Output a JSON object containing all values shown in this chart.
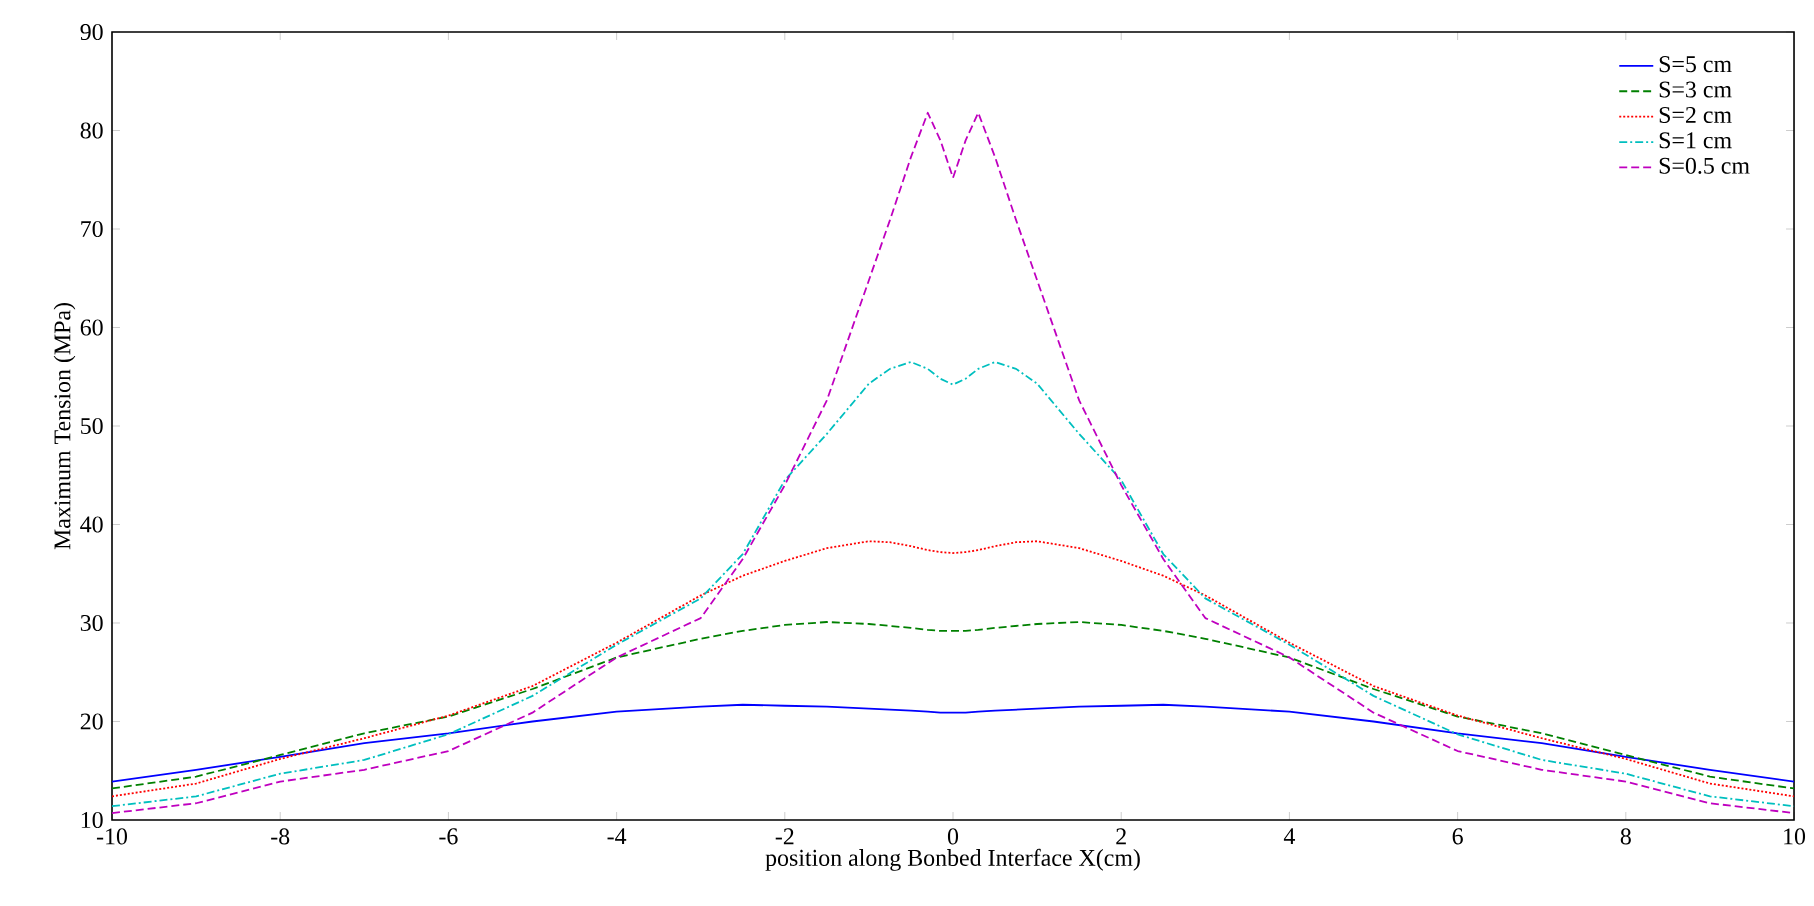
{
  "chart_data": {
    "type": "line",
    "xlabel": "position along Bonbed Interface X(cm)",
    "ylabel": "Maximum Tension (MPa)",
    "x": [
      -10,
      -9,
      -8,
      -7,
      -6,
      -5,
      -4,
      -3,
      -2.5,
      -2,
      -1.5,
      -1,
      -0.75,
      -0.5,
      -0.3,
      -0.15,
      0,
      0.15,
      0.3,
      0.5,
      0.75,
      1,
      1.5,
      2,
      2.5,
      3,
      4,
      5,
      6,
      7,
      8,
      9,
      10
    ],
    "series": [
      {
        "name": "S=5 cm",
        "color": "#0000ff",
        "line_style": "solid",
        "values": [
          13.9,
          15.1,
          16.4,
          17.8,
          18.8,
          20.0,
          21.0,
          21.5,
          21.7,
          21.6,
          21.5,
          21.3,
          21.2,
          21.1,
          21.0,
          20.9,
          20.9,
          20.9,
          21.0,
          21.1,
          21.2,
          21.3,
          21.5,
          21.6,
          21.7,
          21.5,
          21.0,
          20.0,
          18.8,
          17.8,
          16.4,
          15.1,
          13.9
        ]
      },
      {
        "name": "S=3 cm",
        "color": "#008000",
        "line_style": "dashed",
        "values": [
          13.2,
          14.4,
          16.6,
          18.8,
          20.5,
          23.3,
          26.5,
          28.4,
          29.2,
          29.8,
          30.1,
          29.9,
          29.7,
          29.5,
          29.3,
          29.2,
          29.2,
          29.2,
          29.3,
          29.5,
          29.7,
          29.9,
          30.1,
          29.8,
          29.2,
          28.4,
          26.5,
          23.3,
          20.5,
          18.8,
          16.6,
          14.4,
          13.2
        ]
      },
      {
        "name": "S=2 cm",
        "color": "#ff0000",
        "line_style": "dotted",
        "values": [
          12.4,
          13.7,
          16.2,
          18.3,
          20.6,
          23.6,
          28.0,
          32.8,
          34.8,
          36.3,
          37.6,
          38.3,
          38.2,
          37.8,
          37.4,
          37.2,
          37.1,
          37.2,
          37.4,
          37.8,
          38.2,
          38.3,
          37.6,
          36.3,
          34.8,
          32.8,
          28.0,
          23.6,
          20.6,
          18.3,
          16.2,
          13.7,
          12.4
        ]
      },
      {
        "name": "S=1 cm",
        "color": "#00bfbf",
        "line_style": "dashdot",
        "values": [
          11.4,
          12.4,
          14.7,
          16.1,
          18.7,
          22.6,
          27.8,
          32.5,
          37.0,
          44.5,
          49.2,
          54.3,
          55.8,
          56.5,
          55.8,
          54.8,
          54.2,
          54.8,
          55.8,
          56.5,
          55.8,
          54.3,
          49.2,
          44.5,
          37.0,
          32.5,
          27.8,
          22.6,
          18.7,
          16.1,
          14.7,
          12.4,
          11.4
        ]
      },
      {
        "name": "S=0.5 cm",
        "color": "#bf00bf",
        "line_style": "dashed",
        "values": [
          10.7,
          11.7,
          13.9,
          15.1,
          17.0,
          20.9,
          26.5,
          30.5,
          36.5,
          44.0,
          52.6,
          64.8,
          70.9,
          77.3,
          81.8,
          79.0,
          75.2,
          79.0,
          81.8,
          77.3,
          70.9,
          64.8,
          52.6,
          44.0,
          36.5,
          30.5,
          26.5,
          20.9,
          17.0,
          15.1,
          13.9,
          11.7,
          10.7
        ]
      }
    ],
    "xlim": [
      -10,
      10
    ],
    "ylim": [
      10,
      90
    ],
    "xticks": [
      -10,
      -8,
      -6,
      -4,
      -2,
      0,
      2,
      4,
      6,
      8,
      10
    ],
    "yticks": [
      10,
      20,
      30,
      40,
      50,
      60,
      70,
      80,
      90
    ],
    "grid": false,
    "legend": "top right"
  }
}
